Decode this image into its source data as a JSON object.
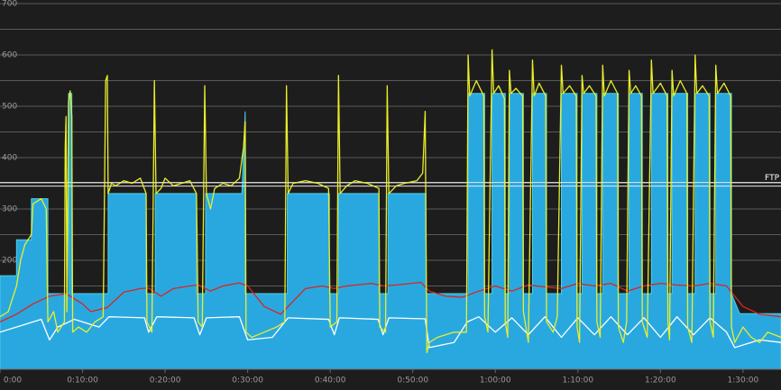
{
  "chart_data": {
    "type": "line",
    "xlim": [
      0,
      94.6
    ],
    "ylim": [
      0,
      700
    ],
    "xticks": [
      {
        "value": 0,
        "label": "0:00"
      },
      {
        "value": 10,
        "label": "0:10:00"
      },
      {
        "value": 20,
        "label": "0:20:00"
      },
      {
        "value": 30,
        "label": "0:30:00"
      },
      {
        "value": 40,
        "label": "0:40:00"
      },
      {
        "value": 50,
        "label": "0:50:00"
      },
      {
        "value": 60,
        "label": "1:00:00"
      },
      {
        "value": 70,
        "label": "1:10:00"
      },
      {
        "value": 80,
        "label": "1:20:00"
      },
      {
        "value": 90,
        "label": "1:30:00"
      }
    ],
    "yticks": [
      200,
      300,
      400,
      500,
      600,
      700
    ],
    "ygrid": [
      150,
      200,
      250,
      300,
      350,
      400,
      450,
      500,
      550,
      600,
      650,
      700
    ],
    "ftp": {
      "value": 348,
      "label": "FTP"
    },
    "series": [
      {
        "style": "area",
        "color": "#29a8e0",
        "x": [
          0,
          2.0,
          2.0,
          3.8,
          3.8,
          5.8,
          5.8,
          8.3,
          8.3,
          8.7,
          8.7,
          13.1,
          13.1,
          17.7,
          17.7,
          18.8,
          18.8,
          23.8,
          23.8,
          24.9,
          24.9,
          29.3,
          29.7,
          29.7,
          34.8,
          34.8,
          39.9,
          39.9,
          41.0,
          41.0,
          45.9,
          45.9,
          47.0,
          47.0,
          51.6,
          51.6,
          56.7,
          56.7,
          58.7,
          58.7,
          59.6,
          59.6,
          61.2,
          61.2,
          61.7,
          61.7,
          63.4,
          63.4,
          64.5,
          64.5,
          66.2,
          66.2,
          68.0,
          68.0,
          69.9,
          69.9,
          70.5,
          70.5,
          72.3,
          72.3,
          73.0,
          73.0,
          74.9,
          74.9,
          76.2,
          76.2,
          77.8,
          77.8,
          78.9,
          78.9,
          80.9,
          80.9,
          81.4,
          81.4,
          83.3,
          83.3,
          84.2,
          84.2,
          86.0,
          86.0,
          86.7,
          86.7,
          88.6,
          88.6,
          89.6,
          94.6
        ],
        "values": [
          170,
          170,
          240,
          240,
          320,
          320,
          135,
          135,
          525,
          525,
          135,
          135,
          330,
          330,
          135,
          135,
          330,
          330,
          135,
          135,
          330,
          330,
          490,
          135,
          135,
          330,
          330,
          135,
          135,
          330,
          330,
          135,
          135,
          330,
          330,
          135,
          135,
          525,
          525,
          135,
          135,
          525,
          525,
          135,
          135,
          525,
          525,
          135,
          135,
          525,
          525,
          135,
          135,
          525,
          525,
          135,
          135,
          525,
          525,
          135,
          135,
          525,
          525,
          135,
          135,
          525,
          525,
          135,
          135,
          525,
          525,
          135,
          135,
          525,
          525,
          135,
          135,
          525,
          525,
          135,
          135,
          525,
          525,
          135,
          96,
          96
        ]
      },
      {
        "style": "line",
        "color": "#ffffff",
        "x": [
          0,
          3,
          5,
          6,
          7,
          9,
          12,
          13.2,
          17.5,
          18,
          19,
          23.5,
          24.2,
          25,
          29,
          30,
          33,
          34.9,
          39.8,
          40.5,
          41.1,
          45.8,
          46.4,
          47.1,
          51.5,
          52,
          55,
          56.6,
          58,
          60,
          62,
          64,
          66,
          68,
          70,
          72,
          74,
          76,
          78,
          80,
          82,
          84,
          86,
          88,
          89,
          92,
          94.6
        ],
        "values": [
          60,
          75,
          85,
          45,
          70,
          85,
          70,
          90,
          88,
          60,
          90,
          88,
          55,
          88,
          90,
          45,
          50,
          88,
          85,
          55,
          88,
          85,
          55,
          88,
          86,
          30,
          40,
          80,
          90,
          60,
          88,
          55,
          90,
          50,
          88,
          55,
          90,
          55,
          88,
          50,
          90,
          55,
          88,
          60,
          30,
          45,
          40
        ]
      },
      {
        "style": "line",
        "color": "#d8261e",
        "x": [
          0,
          2,
          4,
          6,
          8,
          10,
          11,
          13,
          15,
          17,
          18,
          19.5,
          21,
          23,
          24,
          25.5,
          27,
          29,
          30,
          32,
          34,
          35.5,
          37,
          39,
          40.5,
          42,
          45,
          46.5,
          48,
          51,
          52,
          54,
          56,
          58,
          60,
          62,
          64,
          66,
          68,
          70,
          72,
          74,
          76,
          78,
          80,
          82,
          84,
          86,
          88,
          90,
          92,
          94.6
        ],
        "values": [
          80,
          95,
          115,
          130,
          135,
          115,
          100,
          108,
          138,
          145,
          146,
          130,
          145,
          150,
          152,
          140,
          150,
          156,
          150,
          110,
          95,
          120,
          145,
          150,
          145,
          150,
          155,
          150,
          152,
          157,
          140,
          130,
          128,
          140,
          150,
          140,
          152,
          148,
          145,
          155,
          150,
          155,
          140,
          150,
          155,
          152,
          150,
          155,
          150,
          110,
          95,
          90
        ]
      },
      {
        "style": "line",
        "color": "#e8ef2a",
        "x": [
          0,
          1,
          2,
          2.5,
          3,
          3.8,
          4,
          5,
          5.6,
          5.8,
          6.5,
          7,
          7.8,
          7.9,
          8.0,
          8.1,
          8.3,
          8.5,
          8.7,
          8.8,
          9.5,
          10.5,
          11.5,
          12.5,
          12.8,
          13.0,
          13.1,
          13.5,
          14,
          15,
          16,
          17,
          17.7,
          17.8,
          18.4,
          18.7,
          18.9,
          19.5,
          20,
          21,
          22,
          23,
          23.8,
          24.0,
          24.5,
          24.8,
          25.0,
          25.5,
          26,
          27,
          28,
          29,
          29.5,
          29.7,
          29.8,
          30.5,
          32,
          33.5,
          34.5,
          34.7,
          34.9,
          35.5,
          37,
          38.5,
          39.8,
          40,
          40.8,
          41.0,
          41.2,
          42,
          43,
          44.5,
          45.9,
          46.0,
          46.7,
          46.9,
          47.1,
          48,
          49,
          50.5,
          51.2,
          51.5,
          51.7,
          52,
          53,
          55,
          56.5,
          56.7,
          56.9,
          57.7,
          58.6,
          58.7,
          59.1,
          59.6,
          59.8,
          60.4,
          61.1,
          61.2,
          61.5,
          61.7,
          61.9,
          62.5,
          63.3,
          63.4,
          64.0,
          64.5,
          64.7,
          65.3,
          66.1,
          66.2,
          67.0,
          67.5,
          68.0,
          68.2,
          69.0,
          69.8,
          69.9,
          70.2,
          70.5,
          70.7,
          71.4,
          72.2,
          72.3,
          72.7,
          73.0,
          73.2,
          74.0,
          74.8,
          74.9,
          75.5,
          75.9,
          76.2,
          76.4,
          77.0,
          77.7,
          77.8,
          78.4,
          78.9,
          79.1,
          80.0,
          80.8,
          80.9,
          81.1,
          81.4,
          81.6,
          82.4,
          83.2,
          83.3,
          83.8,
          84.2,
          84.4,
          85.1,
          85.9,
          86.0,
          86.4,
          86.7,
          86.9,
          87.7,
          88.5,
          88.6,
          89.0,
          90,
          91,
          92,
          93,
          94.6
        ],
        "values": [
          90,
          100,
          150,
          200,
          230,
          250,
          310,
          320,
          300,
          80,
          100,
          60,
          80,
          420,
          480,
          100,
          510,
          530,
          480,
          60,
          70,
          60,
          80,
          90,
          550,
          560,
          330,
          350,
          345,
          355,
          350,
          360,
          330,
          80,
          60,
          550,
          330,
          340,
          360,
          345,
          350,
          355,
          330,
          80,
          70,
          540,
          330,
          300,
          340,
          350,
          345,
          360,
          420,
          470,
          60,
          50,
          60,
          70,
          80,
          540,
          330,
          350,
          355,
          350,
          340,
          70,
          80,
          560,
          330,
          345,
          355,
          350,
          340,
          70,
          60,
          540,
          330,
          345,
          350,
          355,
          370,
          490,
          20,
          40,
          50,
          60,
          60,
          600,
          520,
          550,
          520,
          90,
          60,
          610,
          525,
          540,
          515,
          80,
          50,
          570,
          525,
          535,
          520,
          100,
          40,
          590,
          520,
          545,
          520,
          80,
          60,
          90,
          580,
          525,
          540,
          520,
          70,
          40,
          560,
          525,
          540,
          520,
          80,
          50,
          580,
          520,
          550,
          525,
          70,
          40,
          80,
          570,
          525,
          540,
          520,
          80,
          50,
          590,
          525,
          545,
          520,
          80,
          45,
          570,
          520,
          550,
          525,
          70,
          40,
          600,
          525,
          540,
          520,
          80,
          50,
          580,
          525,
          545,
          520,
          70,
          40,
          70,
          50,
          40,
          60,
          50
        ]
      }
    ]
  }
}
